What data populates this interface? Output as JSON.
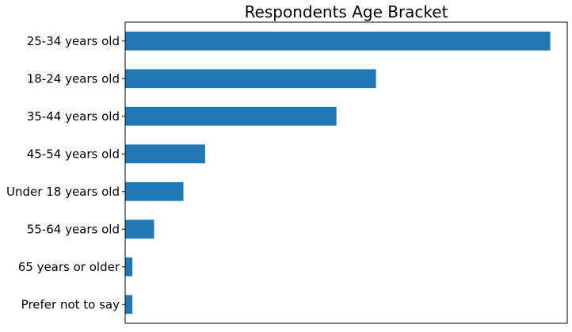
{
  "chart_data": {
    "type": "bar",
    "orientation": "horizontal",
    "title": "Respondents Age Bracket",
    "xlabel": "",
    "ylabel": "",
    "categories": [
      "25-34 years old",
      "18-24 years old",
      "35-44 years old",
      "45-54 years old",
      "Under 18 years old",
      "55-64 years old",
      "65 years or older",
      "Prefer not to say"
    ],
    "values": [
      100,
      59,
      49.7,
      18.8,
      13.7,
      6.8,
      1.7,
      1.7
    ],
    "xlim": [
      0,
      104
    ],
    "x_ticks_visible": false,
    "grid": false,
    "legend": "none",
    "bar_color": "#1f77b4"
  }
}
